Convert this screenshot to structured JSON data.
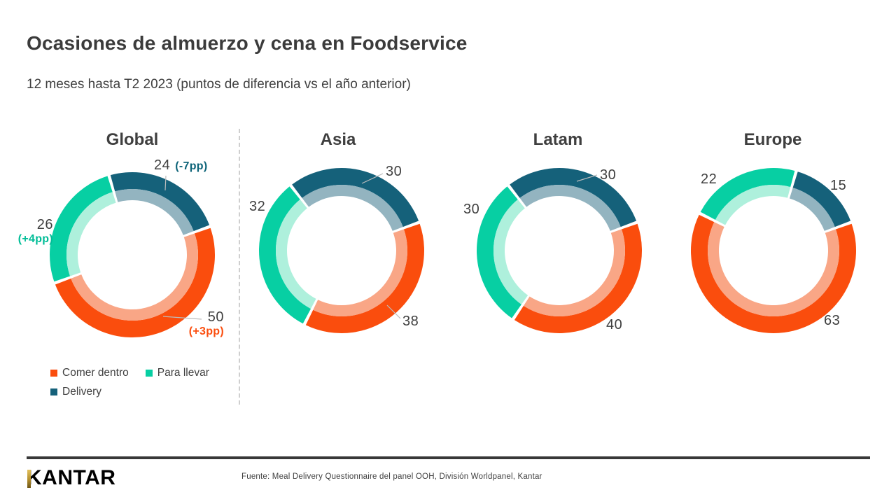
{
  "title": "Ocasiones de almuerzo y cena en Foodservice",
  "subtitle": "12 meses hasta T2 2023 (puntos de diferencia vs el año anterior)",
  "chart_data": {
    "type": "donut",
    "note": "Four donut multiples, two concentric rings (outer = strong color, inner = light tint), clockwise from start_angle",
    "series_names": [
      "Comer dentro",
      "Para llevar",
      "Delivery"
    ],
    "colors": {
      "comer_dentro": "#FA4D0D",
      "para_llevar": "#07CFA3",
      "delivery": "#15617A",
      "comer_dentro_inner": "#F9A686",
      "para_llevar_inner": "#AEF0DC",
      "delivery_inner": "#93B4C0"
    },
    "start_angle_deg": 70,
    "regions": [
      {
        "name": "Global",
        "values": {
          "comer_dentro": 50,
          "para_llevar": 26,
          "delivery": 24
        },
        "labels": {
          "comer_dentro": {
            "value": "50",
            "delta": "(+3pp)"
          },
          "para_llevar": {
            "value": "26",
            "delta": "(+4pp)"
          },
          "delivery": {
            "value": "24",
            "delta": "(-7pp)"
          }
        }
      },
      {
        "name": "Asia",
        "values": {
          "comer_dentro": 38,
          "para_llevar": 32,
          "delivery": 30
        },
        "labels": {
          "comer_dentro": {
            "value": "38"
          },
          "para_llevar": {
            "value": "32"
          },
          "delivery": {
            "value": "30"
          }
        }
      },
      {
        "name": "Latam",
        "values": {
          "comer_dentro": 40,
          "para_llevar": 30,
          "delivery": 30
        },
        "labels": {
          "comer_dentro": {
            "value": "40"
          },
          "para_llevar": {
            "value": "30"
          },
          "delivery": {
            "value": "30"
          }
        }
      },
      {
        "name": "Europe",
        "values": {
          "comer_dentro": 63,
          "para_llevar": 22,
          "delivery": 15
        },
        "labels": {
          "comer_dentro": {
            "value": "63"
          },
          "para_llevar": {
            "value": "22"
          },
          "delivery": {
            "value": "15"
          }
        }
      }
    ]
  },
  "legend": {
    "items": [
      {
        "label": "Comer dentro",
        "color": "#FA4D0D"
      },
      {
        "label": "Para llevar",
        "color": "#07CFA3"
      },
      {
        "label": "Delivery",
        "color": "#15617A"
      }
    ]
  },
  "footer": {
    "logo": "KANTAR",
    "source": "Fuente: Meal Delivery Questionnaire del panel OOH, División Worldpanel, Kantar"
  }
}
